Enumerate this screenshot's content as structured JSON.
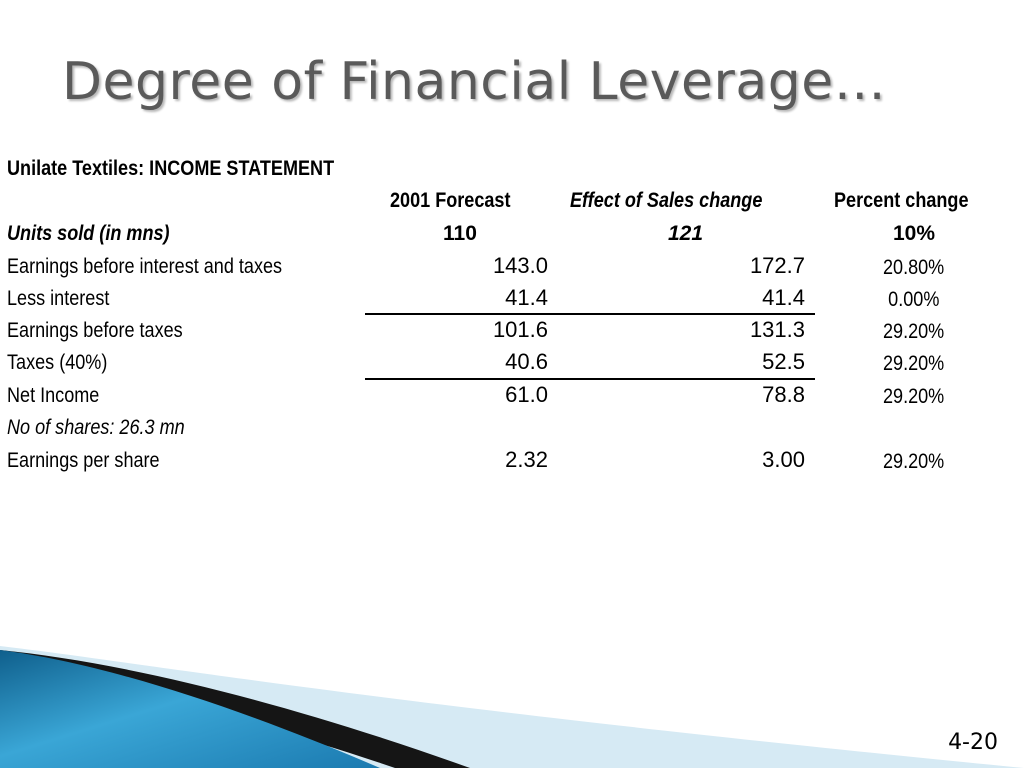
{
  "title": "Degree of Financial Leverage…",
  "statement_title": "Unilate Textiles: INCOME STATEMENT",
  "columns": {
    "forecast": "2001 Forecast",
    "effect": "Effect of Sales change",
    "percent": "Percent change"
  },
  "units": {
    "label": "Units sold (in mns)",
    "forecast": "110",
    "effect": "121",
    "percent": "10%"
  },
  "rows": [
    {
      "label": "Earnings before interest and taxes",
      "forecast": "143.0",
      "effect": "172.7",
      "percent": "20.80%"
    },
    {
      "label": "Less interest",
      "forecast": "41.4",
      "effect": "41.4",
      "percent": "0.00%"
    },
    {
      "label": "Earnings before taxes",
      "forecast": "101.6",
      "effect": "131.3",
      "percent": "29.20%"
    },
    {
      "label": "Taxes (40%)",
      "forecast": "40.6",
      "effect": "52.5",
      "percent": "29.20%"
    },
    {
      "label": "Net Income",
      "forecast": "61.0",
      "effect": "78.8",
      "percent": "29.20%"
    }
  ],
  "shares_note": "No of shares: 26.3 mn",
  "eps": {
    "label": "Earnings per share",
    "forecast": "2.32",
    "effect": "3.00",
    "percent": "29.20%"
  },
  "page_number": "4-20",
  "colors": {
    "title": "#5a5a5a",
    "swoosh_blue": "#2a8fc4",
    "swoosh_light": "#cfe6f2",
    "swoosh_dark": "#111111"
  }
}
